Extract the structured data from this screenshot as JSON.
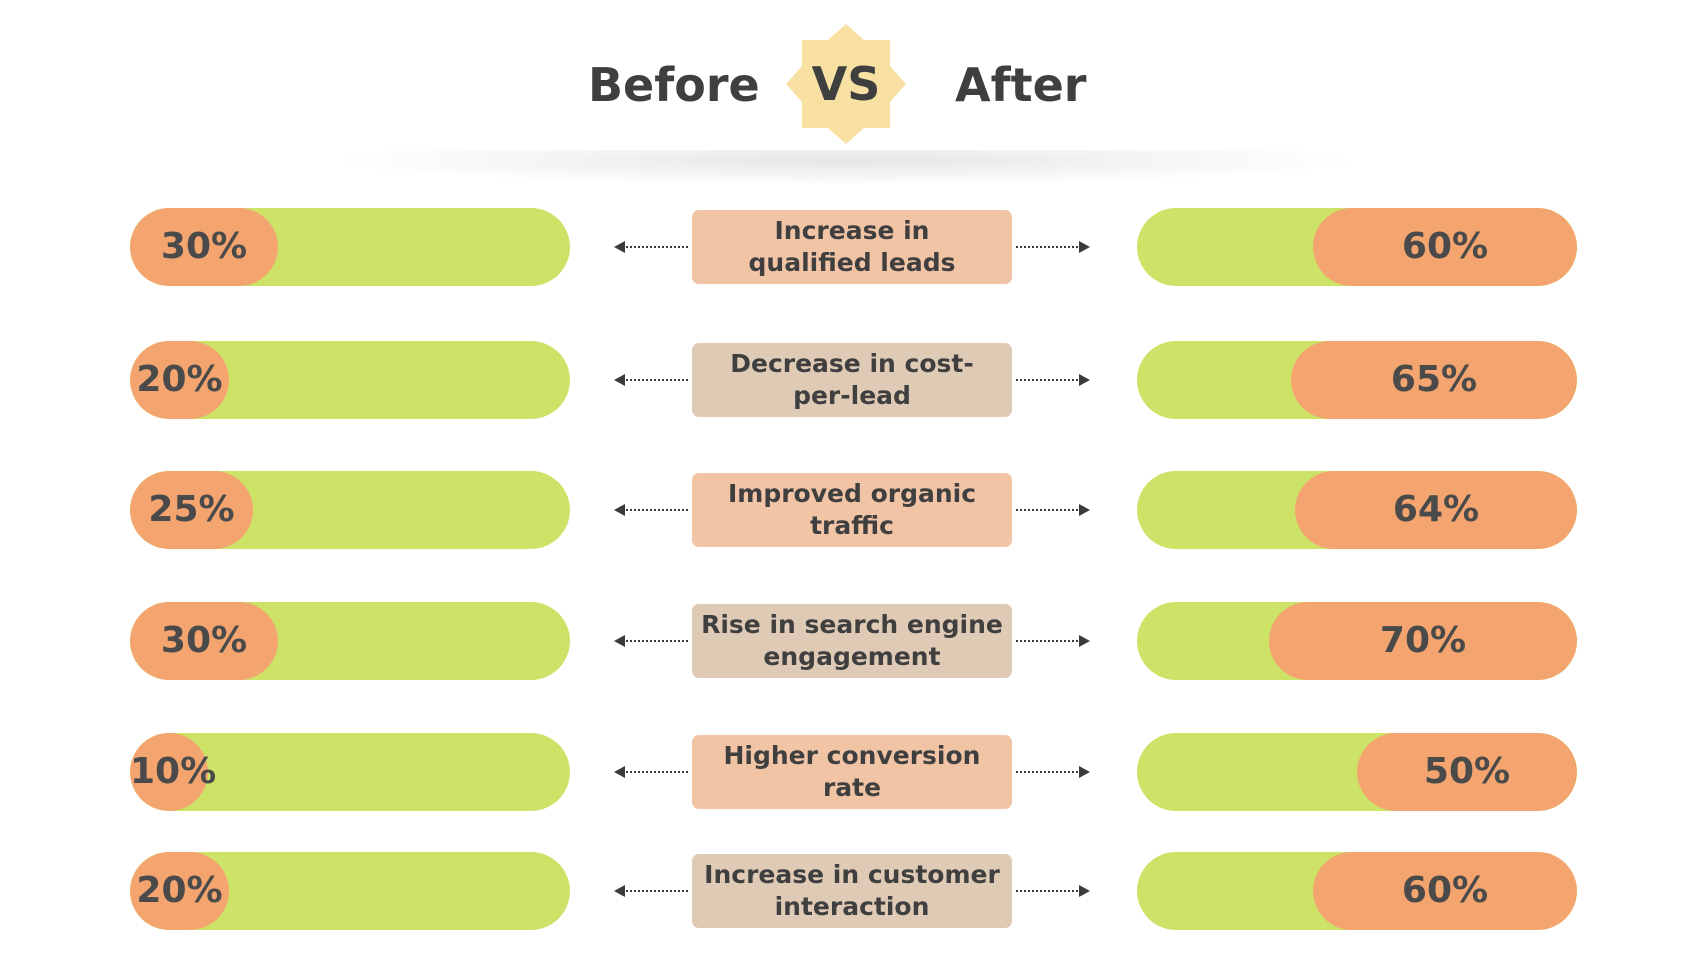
{
  "header": {
    "before_label": "Before",
    "vs_label": "VS",
    "after_label": "After"
  },
  "colors": {
    "track": "#cce368",
    "fill": "#f4a56f",
    "card_salmon": "#f2c4a6",
    "card_tan": "#dfcab5",
    "badge": "#f8e0a2",
    "text": "#3f3f3f"
  },
  "chart_data": {
    "type": "bar",
    "categories": [
      "Increase in qualified leads",
      "Decrease in cost-per-lead",
      "Improved organic traffic",
      "Rise in search engine engagement",
      "Higher conversion rate",
      "Increase in customer interaction"
    ],
    "series": [
      {
        "name": "Before",
        "values": [
          30,
          20,
          25,
          30,
          10,
          20
        ],
        "labels": [
          "30%",
          "20%",
          "25%",
          "30%",
          "10%",
          "20%"
        ]
      },
      {
        "name": "After",
        "values": [
          60,
          65,
          64,
          70,
          50,
          60
        ],
        "labels": [
          "60%",
          "65%",
          "64%",
          "70%",
          "50%",
          "60%"
        ]
      }
    ],
    "ylim": [
      0,
      100
    ],
    "grid": false
  },
  "metrics": [
    {
      "label_lines": [
        "Increase in",
        "qualified leads"
      ],
      "card_color": "salmon"
    },
    {
      "label_lines": [
        "Decrease in cost-",
        "per-lead"
      ],
      "card_color": "tan"
    },
    {
      "label_lines": [
        "Improved organic",
        "traffic"
      ],
      "card_color": "salmon"
    },
    {
      "label_lines": [
        "Rise in search engine",
        "engagement"
      ],
      "card_color": "tan"
    },
    {
      "label_lines": [
        "Higher conversion",
        "rate"
      ],
      "card_color": "salmon"
    },
    {
      "label_lines": [
        "Increase in customer",
        "interaction"
      ],
      "card_color": "tan"
    }
  ]
}
